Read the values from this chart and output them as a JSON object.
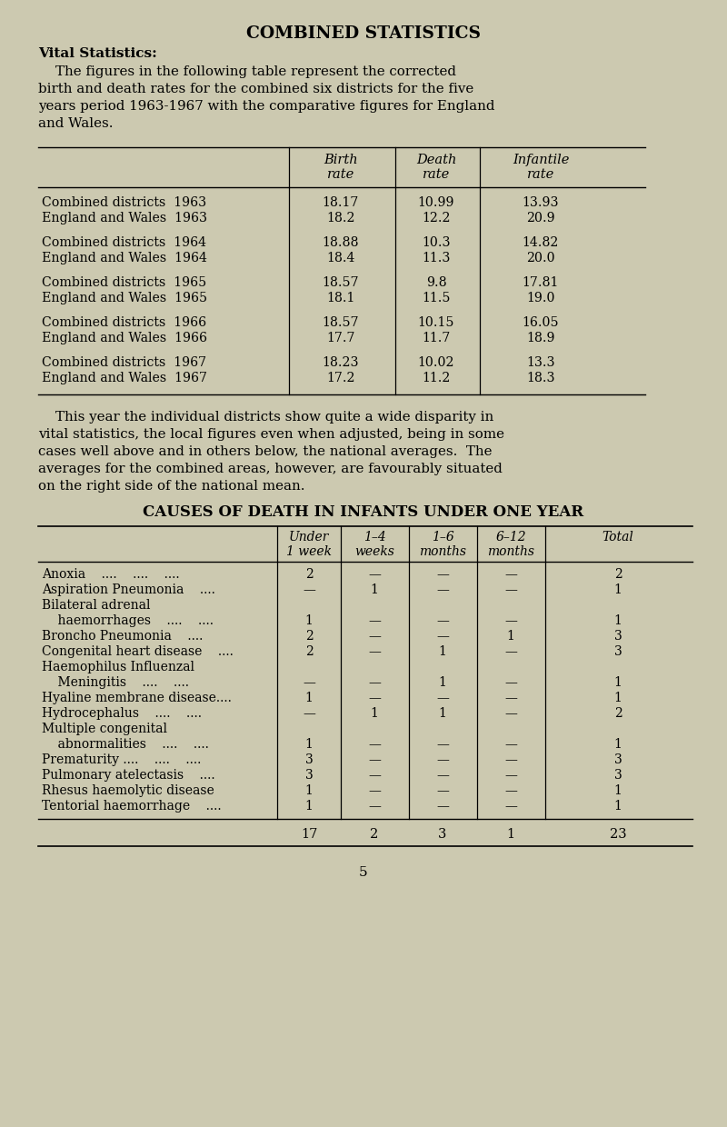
{
  "bg_color": "#ccc9b0",
  "title": "COMBINED STATISTICS",
  "section1_header": "Vital Statistics:",
  "body1_lines": [
    "    The figures in the following table represent the corrected",
    "birth and death rates for the combined six districts for the five",
    "years period 1963-1967 with the comparative figures for England",
    "and Wales."
  ],
  "vital_rows": [
    [
      "Combined districts  1963",
      "18.17",
      "10.99",
      "13.93"
    ],
    [
      "England and Wales  1963",
      "18.2",
      "12.2",
      "20.9"
    ],
    [
      "Combined districts  1964",
      "18.88",
      "10.3",
      "14.82"
    ],
    [
      "England and Wales  1964",
      "18.4",
      "11.3",
      "20.0"
    ],
    [
      "Combined districts  1965",
      "18.57",
      "9.8",
      "17.81"
    ],
    [
      "England and Wales  1965",
      "18.1",
      "11.5",
      "19.0"
    ],
    [
      "Combined districts  1966",
      "18.57",
      "10.15",
      "16.05"
    ],
    [
      "England and Wales  1966",
      "17.7",
      "11.7",
      "18.9"
    ],
    [
      "Combined districts  1967",
      "18.23",
      "10.02",
      "13.3"
    ],
    [
      "England and Wales  1967",
      "17.2",
      "11.2",
      "18.3"
    ]
  ],
  "body2_lines": [
    "    This year the individual districts show quite a wide disparity in",
    "vital statistics, the local figures even when adjusted, being in some",
    "cases well above and in others below, the national averages.  The",
    "averages for the combined areas, however, are favourably situated",
    "on the right side of the national mean."
  ],
  "section2_header": "CAUSES OF DEATH IN INFANTS UNDER ONE YEAR",
  "causes_rows": [
    [
      "Anoxia    ....    ....    ....",
      "2",
      "—",
      "—",
      "—",
      "2"
    ],
    [
      "Aspiration Pneumonia    ....",
      "—",
      "1",
      "—",
      "—",
      "1"
    ],
    [
      "Bilateral adrenal",
      "",
      "",
      "",
      "",
      ""
    ],
    [
      "    haemorrhages    ....    ....",
      "1",
      "—",
      "—",
      "—",
      "1"
    ],
    [
      "Broncho Pneumonia    ....",
      "2",
      "—",
      "—",
      "1",
      "3"
    ],
    [
      "Congenital heart disease    ....",
      "2",
      "—",
      "1",
      "—",
      "3"
    ],
    [
      "Haemophilus Influenzal",
      "",
      "",
      "",
      "",
      ""
    ],
    [
      "    Meningitis    ....    ....",
      "—",
      "—",
      "1",
      "—",
      "1"
    ],
    [
      "Hyaline membrane disease....",
      "1",
      "—",
      "—",
      "—",
      "1"
    ],
    [
      "Hydrocephalus    ....    ....",
      "—",
      "1",
      "1",
      "—",
      "2"
    ],
    [
      "Multiple congenital",
      "",
      "",
      "",
      "",
      ""
    ],
    [
      "    abnormalities    ....    ....",
      "1",
      "—",
      "—",
      "—",
      "1"
    ],
    [
      "Prematurity ....    ....    ....",
      "3",
      "—",
      "—",
      "—",
      "3"
    ],
    [
      "Pulmonary atelectasis    ....",
      "3",
      "—",
      "—",
      "—",
      "3"
    ],
    [
      "Rhesus haemolytic disease",
      "1",
      "—",
      "—",
      "—",
      "1"
    ],
    [
      "Tentorial haemorrhage    ....",
      "1",
      "—",
      "—",
      "—",
      "1"
    ]
  ],
  "causes_totals": [
    "17",
    "2",
    "3",
    "1",
    "23"
  ],
  "page_number": "5"
}
